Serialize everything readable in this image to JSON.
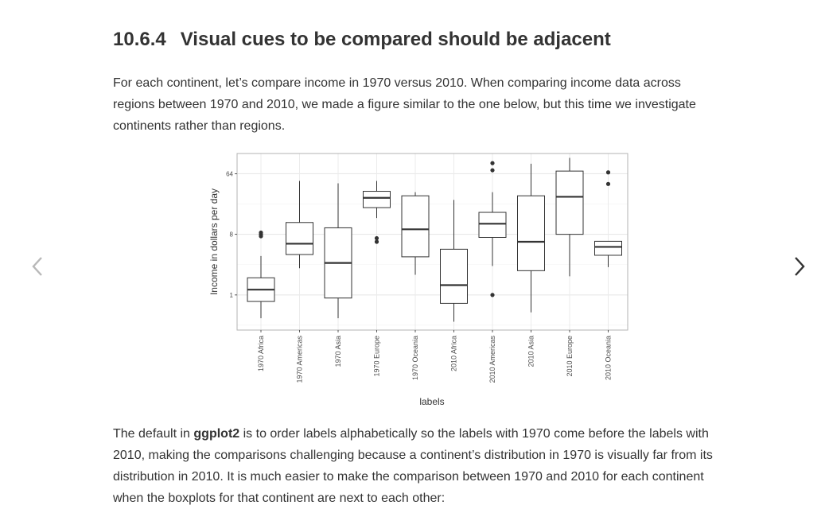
{
  "nav": {
    "prev_icon": "chevron-left-icon",
    "next_icon": "chevron-right-icon"
  },
  "section": {
    "number": "10.6.4",
    "title": "Visual cues to be compared should be adjacent"
  },
  "intro": "For each continent, let’s compare income in 1970 versus 2010. When comparing income data across regions between 1970 and 2010, we made a figure similar to the one below, but this time we investigate continents rather than regions.",
  "outro": {
    "before": "The default in ",
    "bold": "ggplot2",
    "after": " is to order labels alphabetically so the labels with 1970 come before the labels with 2010, making the comparisons challenging because a continent’s distribution in 1970 is visually far from its distribution in 2010. It is much easier to make the comparison between 1970 and 2010 for each continent when the boxplots for that continent are next to each other:"
  },
  "chart_data": {
    "type": "boxplot",
    "xlabel": "labels",
    "ylabel": "Income in dollars per day",
    "y_scale": "log2",
    "yticks": [
      1,
      8,
      64
    ],
    "ylim": [
      0.3,
      128
    ],
    "grid": true,
    "categories": [
      "1970 Africa",
      "1970 Americas",
      "1970 Asia",
      "1970 Europe",
      "1970 Oceania",
      "2010 Africa",
      "2010 Americas",
      "2010 Asia",
      "2010 Europe",
      "2010 Oceania"
    ],
    "boxes": [
      {
        "label": "1970 Africa",
        "whisker_low": 0.45,
        "q1": 0.8,
        "median": 1.2,
        "q3": 1.8,
        "whisker_high": 3.8,
        "outliers": [
          7.5,
          8,
          8.5
        ]
      },
      {
        "label": "1970 Americas",
        "whisker_low": 2.5,
        "q1": 4.0,
        "median": 5.8,
        "q3": 12,
        "whisker_high": 50,
        "outliers": []
      },
      {
        "label": "1970 Asia",
        "whisker_low": 0.45,
        "q1": 0.9,
        "median": 3.0,
        "q3": 10,
        "whisker_high": 46,
        "outliers": []
      },
      {
        "label": "1970 Europe",
        "whisker_low": 14,
        "q1": 20,
        "median": 28,
        "q3": 35,
        "whisker_high": 50,
        "outliers": [
          6.2,
          7.0
        ]
      },
      {
        "label": "1970 Oceania",
        "whisker_low": 2.0,
        "q1": 3.7,
        "median": 9.5,
        "q3": 30,
        "whisker_high": 34,
        "outliers": []
      },
      {
        "label": "2010 Africa",
        "whisker_low": 0.4,
        "q1": 0.75,
        "median": 1.4,
        "q3": 4.8,
        "whisker_high": 26,
        "outliers": []
      },
      {
        "label": "2010 Americas",
        "whisker_low": 2.7,
        "q1": 7.2,
        "median": 11.5,
        "q3": 17,
        "whisker_high": 34,
        "outliers": [
          1.0,
          72,
          92
        ]
      },
      {
        "label": "2010 Asia",
        "whisker_low": 0.55,
        "q1": 2.3,
        "median": 6.2,
        "q3": 30,
        "whisker_high": 90,
        "outliers": []
      },
      {
        "label": "2010 Europe",
        "whisker_low": 1.9,
        "q1": 8.0,
        "median": 29,
        "q3": 70,
        "whisker_high": 110,
        "outliers": []
      },
      {
        "label": "2010 Oceania",
        "whisker_low": 2.6,
        "q1": 3.9,
        "median": 5.2,
        "q3": 6.3,
        "whisker_high": 6.3,
        "outliers": [
          45,
          67
        ]
      }
    ]
  }
}
